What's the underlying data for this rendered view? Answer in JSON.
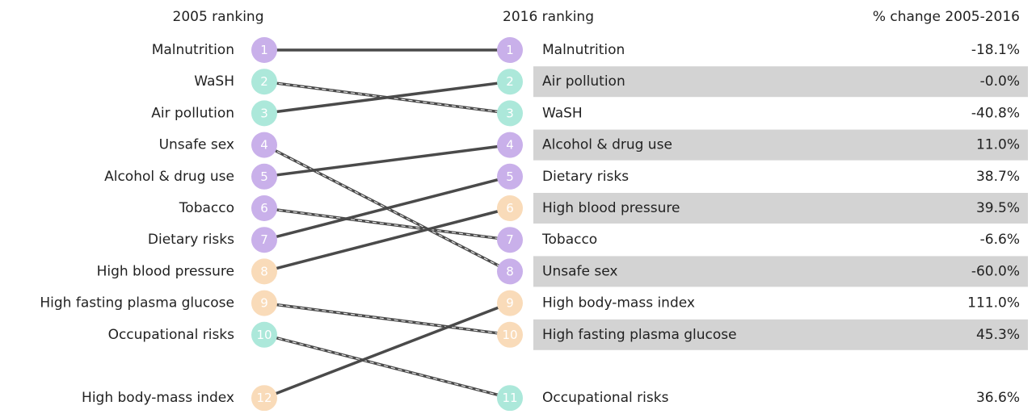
{
  "headers": {
    "left": "2005 ranking",
    "right": "2016 ranking",
    "change": "% change 2005-2016"
  },
  "left": [
    {
      "label": "Malnutrition",
      "rank": 1,
      "color": "#c9b0ea"
    },
    {
      "label": "WaSH",
      "rank": 2,
      "color": "#ace8da"
    },
    {
      "label": "Air pollution",
      "rank": 3,
      "color": "#ace8da"
    },
    {
      "label": "Unsafe sex",
      "rank": 4,
      "color": "#c9b0ea"
    },
    {
      "label": "Alcohol & drug use",
      "rank": 5,
      "color": "#c9b0ea"
    },
    {
      "label": "Tobacco",
      "rank": 6,
      "color": "#c9b0ea"
    },
    {
      "label": "Dietary risks",
      "rank": 7,
      "color": "#c9b0ea"
    },
    {
      "label": "High blood pressure",
      "rank": 8,
      "color": "#f9dbb9"
    },
    {
      "label": "High fasting plasma glucose",
      "rank": 9,
      "color": "#f9dbb9"
    },
    {
      "label": "Occupational risks",
      "rank": 10,
      "color": "#ace8da"
    },
    {
      "label": "High body-mass index",
      "rank": 12,
      "color": "#f9dbb9"
    }
  ],
  "right": [
    {
      "rank": 1,
      "label": "Malnutrition",
      "change": "-18.1%"
    },
    {
      "rank": 2,
      "label": "Air pollution",
      "change": "-0.0%"
    },
    {
      "rank": 3,
      "label": "WaSH",
      "change": "-40.8%"
    },
    {
      "rank": 4,
      "label": "Alcohol & drug use",
      "change": "11.0%"
    },
    {
      "rank": 5,
      "label": "Dietary risks",
      "change": "38.7%"
    },
    {
      "rank": 6,
      "label": "High blood pressure",
      "change": "39.5%"
    },
    {
      "rank": 7,
      "label": "Tobacco",
      "change": "-6.6%"
    },
    {
      "rank": 8,
      "label": "Unsafe sex",
      "change": "-60.0%"
    },
    {
      "rank": 9,
      "label": "High body-mass index",
      "change": "111.0%"
    },
    {
      "rank": 10,
      "label": "High fasting plasma glucose",
      "change": "45.3%"
    },
    {
      "rank": 11,
      "label": "Occupational risks",
      "change": "36.6%"
    }
  ]
}
